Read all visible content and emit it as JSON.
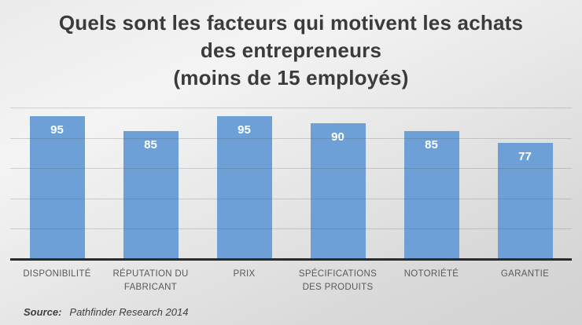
{
  "title": {
    "lines": [
      "Quels sont les facteurs qui motivent les achats",
      "des entrepreneurs",
      "(moins de 15 employés)"
    ]
  },
  "source": {
    "label": "Source:",
    "text": "Pathfinder Research 2014"
  },
  "chart_data": {
    "type": "bar",
    "title": "Quels sont les facteurs qui motivent les achats des entrepreneurs (moins de 15 employés)",
    "categories": [
      "DISPONIBILITÉ",
      "RÉPUTATION DU FABRICANT",
      "PRIX",
      "SPÉCIFICATIONS DES PRODUITS",
      "NOTORIÉTÉ",
      "GARANTIE"
    ],
    "values": [
      95,
      85,
      95,
      90,
      85,
      77
    ],
    "xlabel": "",
    "ylabel": "",
    "ylim": [
      0,
      100
    ],
    "grid": true,
    "grid_step": 20,
    "gridlines_at": [
      20,
      40,
      60,
      80,
      100
    ],
    "data_labels": true,
    "legend": "none",
    "bar_color": "#6ca0d6",
    "data_label_color": "#ffffff",
    "axis_line_color": "#2b2b2b",
    "category_label_color": "#595959",
    "title_color": "#3b3b3b"
  }
}
